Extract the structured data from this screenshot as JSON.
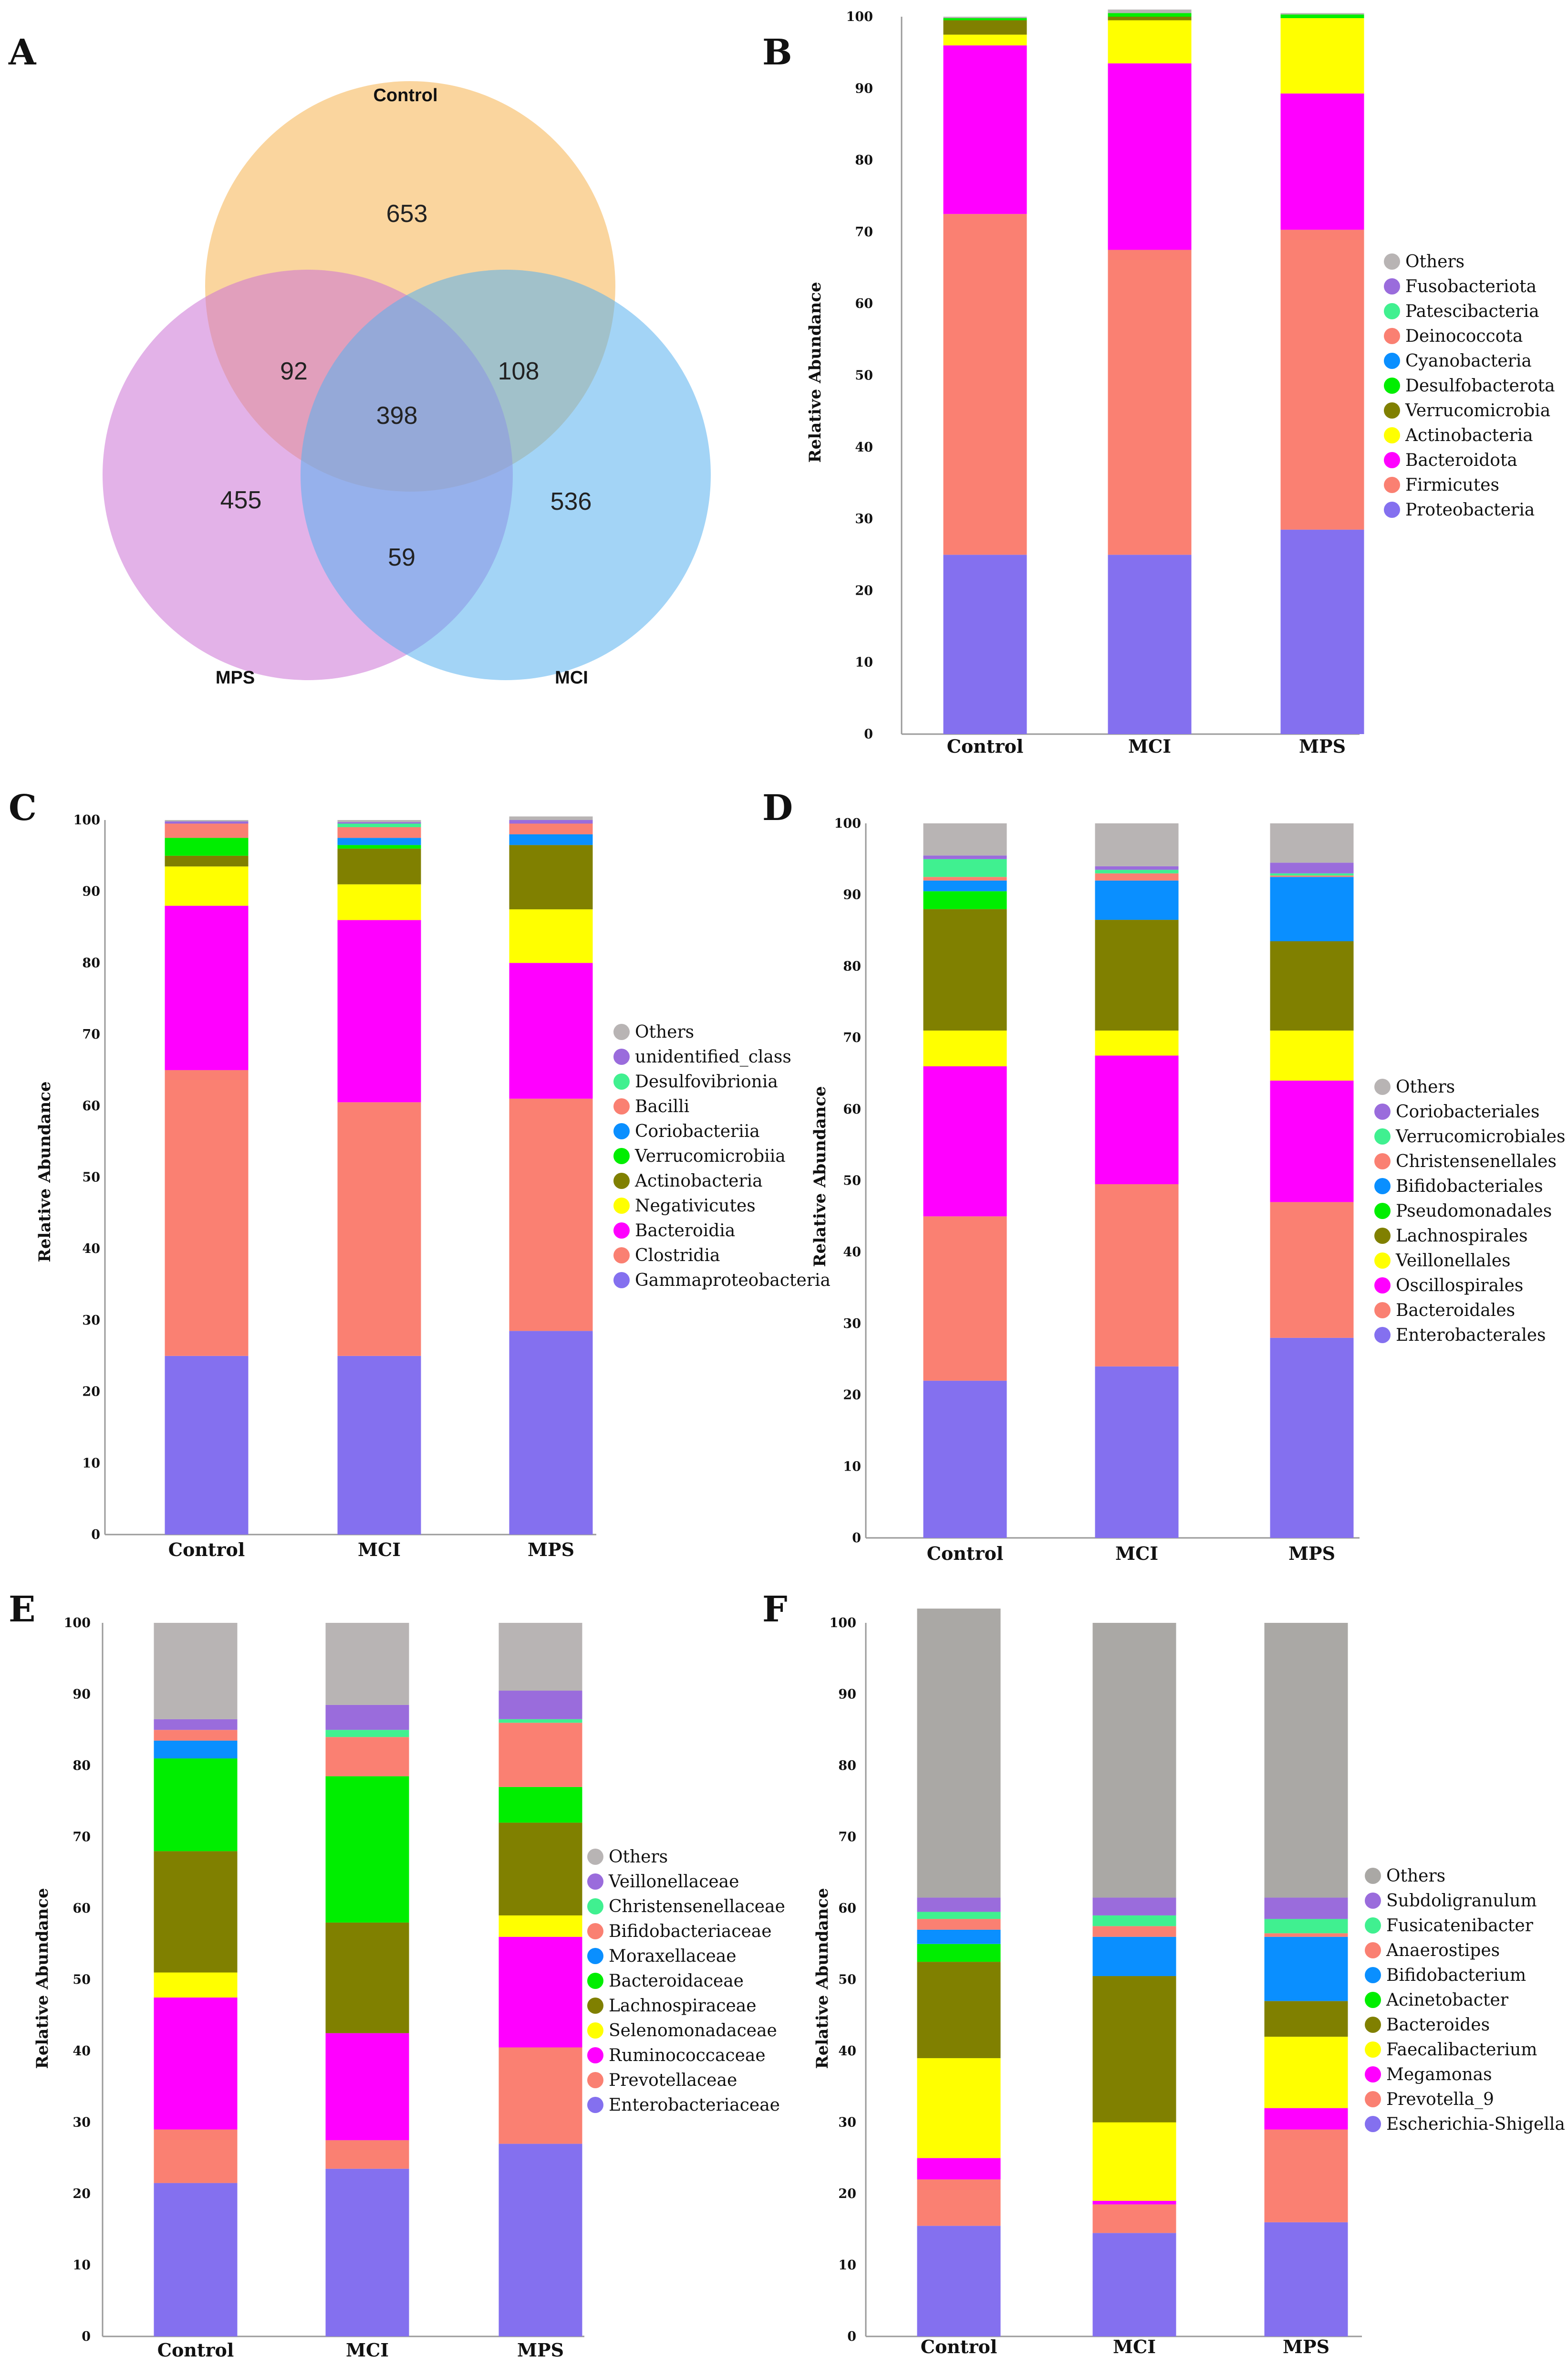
{
  "panel_letters": [
    "A",
    "B",
    "C",
    "D",
    "E",
    "F"
  ],
  "venn": {
    "sets": [
      "Control",
      "MPS",
      "MCI"
    ],
    "colors": {
      "Control": "#f6b24f",
      "MPS": "#cc72d6",
      "MCI": "#57b0ef"
    },
    "counts": {
      "control_only": "653",
      "control_mps": "92",
      "control_mci": "108",
      "all_three": "398",
      "mps_only": "455",
      "mci_only": "536",
      "mps_mci": "59"
    }
  },
  "chart_data": [
    {
      "panel": "B",
      "type": "bar",
      "stacked": true,
      "categories": [
        "Control",
        "MCI",
        "MPS"
      ],
      "ylabel": "Relative Abundance",
      "ylim": [
        0,
        100
      ],
      "yticks": [
        "0",
        "10",
        "20",
        "30",
        "40",
        "50",
        "60",
        "70",
        "80",
        "90",
        "100"
      ],
      "series": [
        {
          "name": "Proteobacteria",
          "color": "#8470ef",
          "values": [
            25,
            25,
            28.5
          ]
        },
        {
          "name": "Firmicutes",
          "color": "#fa8072",
          "values": [
            47.5,
            42.5,
            41.8
          ]
        },
        {
          "name": "Bacteroidota",
          "color": "#ff00ff",
          "values": [
            23.5,
            26,
            19
          ]
        },
        {
          "name": "Actinobacteria",
          "color": "#ffff00",
          "values": [
            1.5,
            6,
            10.5
          ]
        },
        {
          "name": "Verrucomicrobia",
          "color": "#808000",
          "values": [
            2,
            0.5,
            0
          ]
        },
        {
          "name": "Desulfobacterota",
          "color": "#00ee00",
          "values": [
            0.3,
            0.5,
            0.5
          ]
        },
        {
          "name": "Cyanobacteria",
          "color": "#0a8fff",
          "values": [
            0,
            0,
            0
          ]
        },
        {
          "name": "Deinococcota",
          "color": "#fa8072",
          "values": [
            0,
            0,
            0
          ]
        },
        {
          "name": "Patescibacteria",
          "color": "#40f090",
          "values": [
            0,
            0,
            0
          ]
        },
        {
          "name": "Fusobacteriota",
          "color": "#9a6cdc",
          "values": [
            0,
            0,
            0
          ]
        },
        {
          "name": "Others",
          "color": "#b8b4b4",
          "values": [
            0.2,
            0.5,
            0.2
          ]
        }
      ]
    },
    {
      "panel": "C",
      "type": "bar",
      "stacked": true,
      "categories": [
        "Control",
        "MCI",
        "MPS"
      ],
      "ylabel": "Relative Abundance",
      "ylim": [
        0,
        100
      ],
      "yticks": [
        "0",
        "10",
        "20",
        "30",
        "40",
        "50",
        "60",
        "70",
        "80",
        "90",
        "100"
      ],
      "series": [
        {
          "name": "Gammaproteobacteria",
          "color": "#8470ef",
          "values": [
            25,
            25,
            28.5
          ]
        },
        {
          "name": "Clostridia",
          "color": "#fa8072",
          "values": [
            40,
            35.5,
            32.5
          ]
        },
        {
          "name": "Bacteroidia",
          "color": "#ff00ff",
          "values": [
            23,
            25.5,
            19
          ]
        },
        {
          "name": "Negativicutes",
          "color": "#ffff00",
          "values": [
            5.5,
            5,
            7.5
          ]
        },
        {
          "name": "Actinobacteria",
          "color": "#808000",
          "values": [
            1.5,
            5,
            9
          ]
        },
        {
          "name": "Verrucomicrobiia",
          "color": "#00ee00",
          "values": [
            2.5,
            0.5,
            0
          ]
        },
        {
          "name": "Coriobacteriia",
          "color": "#0a8fff",
          "values": [
            0,
            1,
            1.5
          ]
        },
        {
          "name": "Bacilli",
          "color": "#fa8072",
          "values": [
            2,
            1.5,
            1.5
          ]
        },
        {
          "name": "Desulfovibrionia",
          "color": "#40f090",
          "values": [
            0,
            0.5,
            0
          ]
        },
        {
          "name": "unidentified_class",
          "color": "#9a6cdc",
          "values": [
            0.3,
            0.2,
            0.5
          ]
        },
        {
          "name": "Others",
          "color": "#b8b4b4",
          "values": [
            0.2,
            0.3,
            0.5
          ]
        }
      ]
    },
    {
      "panel": "D",
      "type": "bar",
      "stacked": true,
      "categories": [
        "Control",
        "MCI",
        "MPS"
      ],
      "ylabel": "Relative Abundance",
      "ylim": [
        0,
        100
      ],
      "yticks": [
        "0",
        "10",
        "20",
        "30",
        "40",
        "50",
        "60",
        "70",
        "80",
        "90",
        "100"
      ],
      "series": [
        {
          "name": "Enterobacterales",
          "color": "#8470ef",
          "values": [
            22,
            24,
            28
          ]
        },
        {
          "name": "Bacteroidales",
          "color": "#fa8072",
          "values": [
            23,
            25.5,
            19
          ]
        },
        {
          "name": "Oscillospirales",
          "color": "#ff00ff",
          "values": [
            21,
            18,
            17
          ]
        },
        {
          "name": "Veillonellales",
          "color": "#ffff00",
          "values": [
            5,
            3.5,
            7
          ]
        },
        {
          "name": "Lachnospirales",
          "color": "#808000",
          "values": [
            17,
            15.5,
            12.5
          ]
        },
        {
          "name": "Pseudomonadales",
          "color": "#00ee00",
          "values": [
            2.5,
            0,
            0
          ]
        },
        {
          "name": "Bifidobacteriales",
          "color": "#0a8fff",
          "values": [
            1.5,
            5.5,
            9
          ]
        },
        {
          "name": "Christensenellales",
          "color": "#fa8072",
          "values": [
            0.5,
            1,
            0.2
          ]
        },
        {
          "name": "Verrucomicrobiales",
          "color": "#40f090",
          "values": [
            2.5,
            0.5,
            0.3
          ]
        },
        {
          "name": "Coriobacteriales",
          "color": "#9a6cdc",
          "values": [
            0.5,
            0.5,
            1.5
          ]
        },
        {
          "name": "Others",
          "color": "#b8b4b4",
          "values": [
            4.5,
            6,
            5.5
          ]
        }
      ]
    },
    {
      "panel": "E",
      "type": "bar",
      "stacked": true,
      "categories": [
        "Control",
        "MCI",
        "MPS"
      ],
      "ylabel": "Relative Abundance",
      "ylim": [
        0,
        100
      ],
      "yticks": [
        "0",
        "10",
        "20",
        "30",
        "40",
        "50",
        "60",
        "70",
        "80",
        "90",
        "100"
      ],
      "series": [
        {
          "name": "Enterobacteriaceae",
          "color": "#8470ef",
          "values": [
            21.5,
            23.5,
            27
          ]
        },
        {
          "name": "Prevotellaceae",
          "color": "#fa8072",
          "values": [
            7.5,
            4,
            13.5
          ]
        },
        {
          "name": "Ruminococcaceae",
          "color": "#ff00ff",
          "values": [
            18.5,
            15,
            15.5
          ]
        },
        {
          "name": "Selenomonadaceae",
          "color": "#ffff00",
          "values": [
            3.5,
            0,
            3
          ]
        },
        {
          "name": "Lachnospiraceae",
          "color": "#808000",
          "values": [
            17,
            15.5,
            13
          ]
        },
        {
          "name": "Bacteroidaceae",
          "color": "#00ee00",
          "values": [
            13,
            20.5,
            5
          ]
        },
        {
          "name": "Moraxellaceae",
          "color": "#0a8fff",
          "values": [
            2.5,
            0,
            0
          ]
        },
        {
          "name": "Bifidobacteriaceae",
          "color": "#fa8072",
          "values": [
            1.5,
            5.5,
            9
          ]
        },
        {
          "name": "Christensenellaceae",
          "color": "#40f090",
          "values": [
            0,
            1,
            0.5
          ]
        },
        {
          "name": "Veillonellaceae",
          "color": "#9a6cdc",
          "values": [
            1.5,
            3.5,
            4
          ]
        },
        {
          "name": "Others",
          "color": "#b8b4b4",
          "values": [
            13.5,
            11.5,
            9.5
          ]
        }
      ]
    },
    {
      "panel": "F",
      "type": "bar",
      "stacked": true,
      "categories": [
        "Control",
        "MCI",
        "MPS"
      ],
      "ylabel": "Relative Abundance",
      "ylim": [
        0,
        100
      ],
      "yticks": [
        "0",
        "10",
        "20",
        "30",
        "40",
        "50",
        "60",
        "70",
        "80",
        "90",
        "100"
      ],
      "series": [
        {
          "name": "Escherichia-Shigella",
          "color": "#8470ef",
          "values": [
            15.5,
            14.5,
            16
          ]
        },
        {
          "name": "Prevotella_9",
          "color": "#fa8072",
          "values": [
            6.5,
            4,
            13
          ]
        },
        {
          "name": "Megamonas",
          "color": "#ff00ff",
          "values": [
            3,
            0.5,
            3
          ]
        },
        {
          "name": "Faecalibacterium",
          "color": "#ffff00",
          "values": [
            14,
            11,
            10
          ]
        },
        {
          "name": "Bacteroides",
          "color": "#808000",
          "values": [
            13.5,
            20.5,
            5
          ]
        },
        {
          "name": "Acinetobacter",
          "color": "#00ee00",
          "values": [
            2.5,
            0,
            0
          ]
        },
        {
          "name": "Bifidobacterium",
          "color": "#0a8fff",
          "values": [
            2,
            5.5,
            9
          ]
        },
        {
          "name": "Anaerostipes",
          "color": "#fa8072",
          "values": [
            1.5,
            1.5,
            0.5
          ]
        },
        {
          "name": "Fusicatenibacter",
          "color": "#40f090",
          "values": [
            1,
            1.5,
            2
          ]
        },
        {
          "name": "Subdoligranulum",
          "color": "#9a6cdc",
          "values": [
            2,
            2.5,
            3
          ]
        },
        {
          "name": "Others",
          "color": "#aaa8a5",
          "values": [
            40.5,
            38.5,
            38.5
          ]
        }
      ]
    }
  ]
}
